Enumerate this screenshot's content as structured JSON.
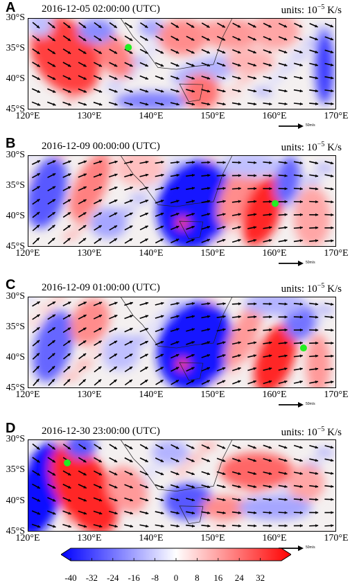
{
  "units": {
    "prefix": "units:",
    "base": "10",
    "exp": "−5",
    "suffix": "K/s"
  },
  "ref_vector_label": "50m/s",
  "colorbar": {
    "ticks": [
      "-40",
      "-32",
      "-24",
      "-16",
      "-8",
      "0",
      "8",
      "16",
      "24",
      "32"
    ],
    "range": [
      -40,
      40
    ],
    "colors": {
      "low": "#0000ff",
      "mid": "#ffffff",
      "high": "#ff0000"
    }
  },
  "map": {
    "lat_labels": [
      "30°S",
      "35°S",
      "40°S",
      "45°S"
    ],
    "lon_labels": [
      "120°E",
      "130°E",
      "140°E",
      "150°E",
      "160°E",
      "170°E"
    ],
    "lon_range": [
      120,
      170
    ],
    "lat_range": [
      -30,
      -45
    ],
    "marker_color": "#22ee22"
  },
  "panels": [
    {
      "letter": "A",
      "time": "2016-12-05 02:00:00 (UTC)",
      "marker": {
        "lon": 136.2,
        "lat": -34.7
      },
      "wind_deg": 340,
      "wind_curve": 0.15,
      "blobs": [
        {
          "lon": 126,
          "lat": -36,
          "rx": 5,
          "ry": 7,
          "v": 30,
          "rot": -35
        },
        {
          "lon": 134,
          "lat": -36,
          "rx": 2.5,
          "ry": 4,
          "v": 20,
          "rot": -30
        },
        {
          "lon": 131,
          "lat": -32,
          "rx": 3,
          "ry": 2,
          "v": -18,
          "rot": 0
        },
        {
          "lon": 140,
          "lat": -31.5,
          "rx": 2,
          "ry": 1.5,
          "v": -14,
          "rot": 0
        },
        {
          "lon": 145,
          "lat": -33,
          "rx": 4,
          "ry": 3,
          "v": 18,
          "rot": 0
        },
        {
          "lon": 153,
          "lat": -32.5,
          "rx": 5,
          "ry": 2.5,
          "v": 16,
          "rot": 0
        },
        {
          "lon": 160,
          "lat": -32,
          "rx": 4,
          "ry": 3,
          "v": 14,
          "rot": 0
        },
        {
          "lon": 149,
          "lat": -38.5,
          "rx": 6,
          "ry": 2,
          "v": -12,
          "rot": -15
        },
        {
          "lon": 156,
          "lat": -37,
          "rx": 4,
          "ry": 2,
          "v": 12,
          "rot": 0
        },
        {
          "lon": 140,
          "lat": -43.5,
          "rx": 6,
          "ry": 1.5,
          "v": -20,
          "rot": 0
        },
        {
          "lon": 148,
          "lat": -42,
          "rx": 3,
          "ry": 3,
          "v": 22,
          "rot": 0
        },
        {
          "lon": 168,
          "lat": -38,
          "rx": 1.5,
          "ry": 6,
          "v": -30,
          "rot": 0
        },
        {
          "lon": 122,
          "lat": -31,
          "rx": 2,
          "ry": 2,
          "v": -10,
          "rot": 0
        }
      ]
    },
    {
      "letter": "B",
      "time": "2016-12-09 00:00:00 (UTC)",
      "marker": {
        "lon": 160.0,
        "lat": -37.8
      },
      "wind_deg": 15,
      "wind_curve": -0.35,
      "blobs": [
        {
          "lon": 123,
          "lat": -36,
          "rx": 3,
          "ry": 6,
          "v": -26,
          "rot": 15
        },
        {
          "lon": 130,
          "lat": -35,
          "rx": 2.5,
          "ry": 6,
          "v": 20,
          "rot": 25
        },
        {
          "lon": 133,
          "lat": -41,
          "rx": 3,
          "ry": 2.5,
          "v": -14,
          "rot": 0
        },
        {
          "lon": 147,
          "lat": -38,
          "rx": 6,
          "ry": 7.5,
          "v": -36,
          "rot": 20
        },
        {
          "lon": 154,
          "lat": -36,
          "rx": 2.5,
          "ry": 6,
          "v": 18,
          "rot": 25
        },
        {
          "lon": 158,
          "lat": -39,
          "rx": 3,
          "ry": 6,
          "v": 34,
          "rot": 20
        },
        {
          "lon": 162,
          "lat": -34,
          "rx": 2,
          "ry": 4,
          "v": -24,
          "rot": 10
        },
        {
          "lon": 166,
          "lat": -40,
          "rx": 3,
          "ry": 5,
          "v": 14,
          "rot": 0
        },
        {
          "lon": 138,
          "lat": -32,
          "rx": 4,
          "ry": 3,
          "v": 10,
          "rot": 0
        },
        {
          "lon": 145,
          "lat": -41,
          "rx": 1,
          "ry": 1,
          "v": 30,
          "rot": 0
        },
        {
          "lon": 156,
          "lat": -31.5,
          "rx": 5,
          "ry": 2,
          "v": -10,
          "rot": 0
        }
      ]
    },
    {
      "letter": "C",
      "time": "2016-12-09 01:00:00 (UTC)",
      "marker": {
        "lon": 164.6,
        "lat": -38.3
      },
      "wind_deg": 20,
      "wind_curve": -0.35,
      "blobs": [
        {
          "lon": 124,
          "lat": -38,
          "rx": 3,
          "ry": 6,
          "v": -24,
          "rot": 15
        },
        {
          "lon": 130,
          "lat": -34,
          "rx": 3,
          "ry": 4,
          "v": 18,
          "rot": 25
        },
        {
          "lon": 135,
          "lat": -39,
          "rx": 3,
          "ry": 3,
          "v": -10,
          "rot": 0
        },
        {
          "lon": 147,
          "lat": -38,
          "rx": 6,
          "ry": 7.5,
          "v": -36,
          "rot": 20
        },
        {
          "lon": 155,
          "lat": -36,
          "rx": 2,
          "ry": 6,
          "v": 16,
          "rot": 25
        },
        {
          "lon": 160,
          "lat": -40,
          "rx": 3,
          "ry": 6,
          "v": 34,
          "rot": 20
        },
        {
          "lon": 164,
          "lat": -34,
          "rx": 2.5,
          "ry": 3,
          "v": -22,
          "rot": 10
        },
        {
          "lon": 167,
          "lat": -41,
          "rx": 2,
          "ry": 5,
          "v": 16,
          "rot": 0
        },
        {
          "lon": 160,
          "lat": -31,
          "rx": 5,
          "ry": 2,
          "v": -12,
          "rot": 0
        },
        {
          "lon": 145,
          "lat": -41,
          "rx": 1,
          "ry": 1,
          "v": 30,
          "rot": 0
        }
      ]
    },
    {
      "letter": "D",
      "time": "2016-12-30 23:00:00 (UTC)",
      "marker": {
        "lon": 126.3,
        "lat": -33.7
      },
      "wind_deg": 345,
      "wind_curve": 0.2,
      "blobs": [
        {
          "lon": 122,
          "lat": -38,
          "rx": 3.5,
          "ry": 8,
          "v": -38,
          "rot": 15
        },
        {
          "lon": 129,
          "lat": -38,
          "rx": 4.5,
          "ry": 8,
          "v": 34,
          "rot": -30
        },
        {
          "lon": 136,
          "lat": -38,
          "rx": 3,
          "ry": 4,
          "v": 16,
          "rot": -30
        },
        {
          "lon": 128.5,
          "lat": -31,
          "rx": 2.5,
          "ry": 2,
          "v": -26,
          "rot": 0
        },
        {
          "lon": 146,
          "lat": -40,
          "rx": 4,
          "ry": 3,
          "v": -26,
          "rot": 0
        },
        {
          "lon": 152,
          "lat": -41,
          "rx": 4,
          "ry": 2,
          "v": 18,
          "rot": 0
        },
        {
          "lon": 157,
          "lat": -35,
          "rx": 6,
          "ry": 3,
          "v": 24,
          "rot": 0
        },
        {
          "lon": 165,
          "lat": -37,
          "rx": 3,
          "ry": 3,
          "v": 14,
          "rot": 0
        },
        {
          "lon": 160,
          "lat": -41,
          "rx": 6,
          "ry": 2,
          "v": -14,
          "rot": 0
        },
        {
          "lon": 143,
          "lat": -32,
          "rx": 3,
          "ry": 2,
          "v": -12,
          "rot": 0
        }
      ]
    }
  ]
}
